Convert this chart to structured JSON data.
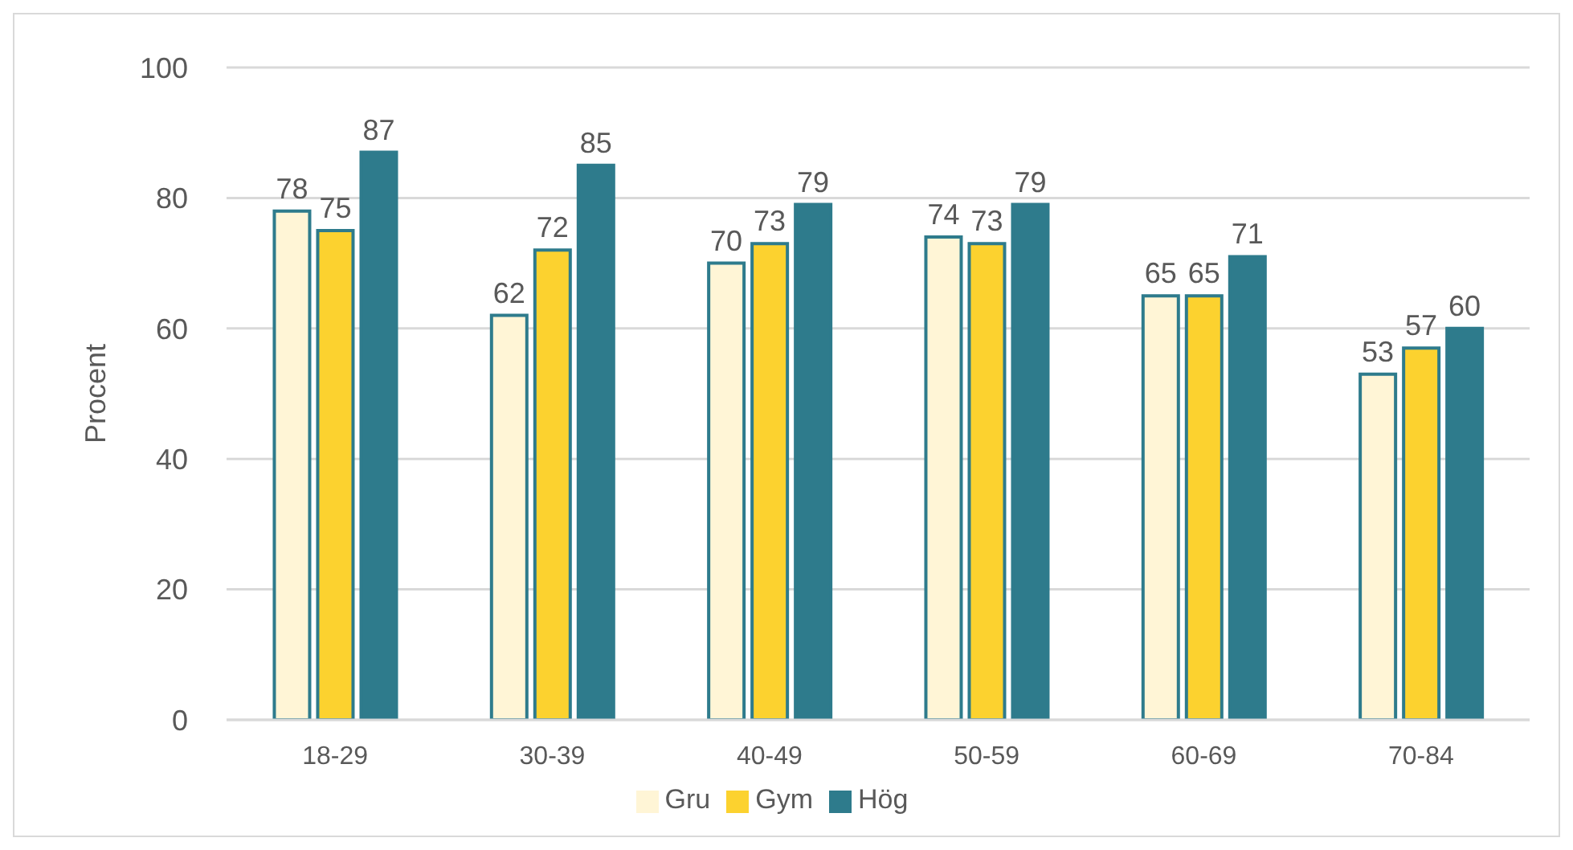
{
  "chart_data": {
    "type": "bar",
    "ylabel": "Procent",
    "categories": [
      "18-29",
      "30-39",
      "40-49",
      "50-59",
      "60-69",
      "70-84"
    ],
    "series": [
      {
        "name": "Gru",
        "color": "#fff5d6",
        "values": [
          78,
          62,
          70,
          74,
          65,
          53
        ]
      },
      {
        "name": "Gym",
        "color": "#fcd22f",
        "values": [
          75,
          72,
          73,
          73,
          65,
          57
        ]
      },
      {
        "name": "Hög",
        "color": "#2e7b8c",
        "values": [
          87,
          85,
          79,
          79,
          71,
          60
        ]
      }
    ],
    "ylim": [
      0,
      100
    ],
    "yticks": [
      0,
      20,
      40,
      60,
      80,
      100
    ],
    "grid": "y",
    "legend": "bottom",
    "data_labels": true
  }
}
